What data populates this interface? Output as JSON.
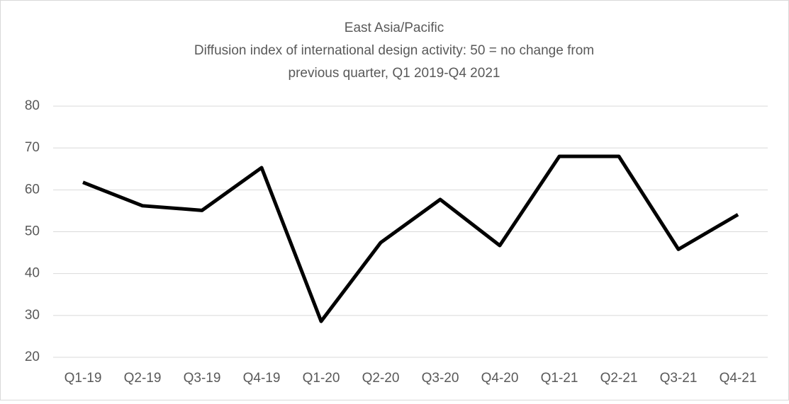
{
  "chart_data": {
    "type": "line",
    "title": "East Asia/Pacific",
    "subtitle": [
      "Diffusion index of international design activity: 50 = no change from",
      "previous quarter, Q1 2019-Q4 2021"
    ],
    "categories": [
      "Q1-19",
      "Q2-19",
      "Q3-19",
      "Q4-19",
      "Q1-20",
      "Q2-20",
      "Q3-20",
      "Q4-20",
      "Q1-21",
      "Q2-21",
      "Q3-21",
      "Q4-21"
    ],
    "series": [
      {
        "color": "#000000",
        "values": [
          61.8,
          56.2,
          55.1,
          65.3,
          28.6,
          47.4,
          57.7,
          46.7,
          68,
          68,
          45.8,
          54.1
        ]
      }
    ],
    "ylim": [
      20,
      80
    ],
    "yticks": [
      20,
      30,
      40,
      50,
      60,
      70,
      80
    ],
    "grid": true
  }
}
